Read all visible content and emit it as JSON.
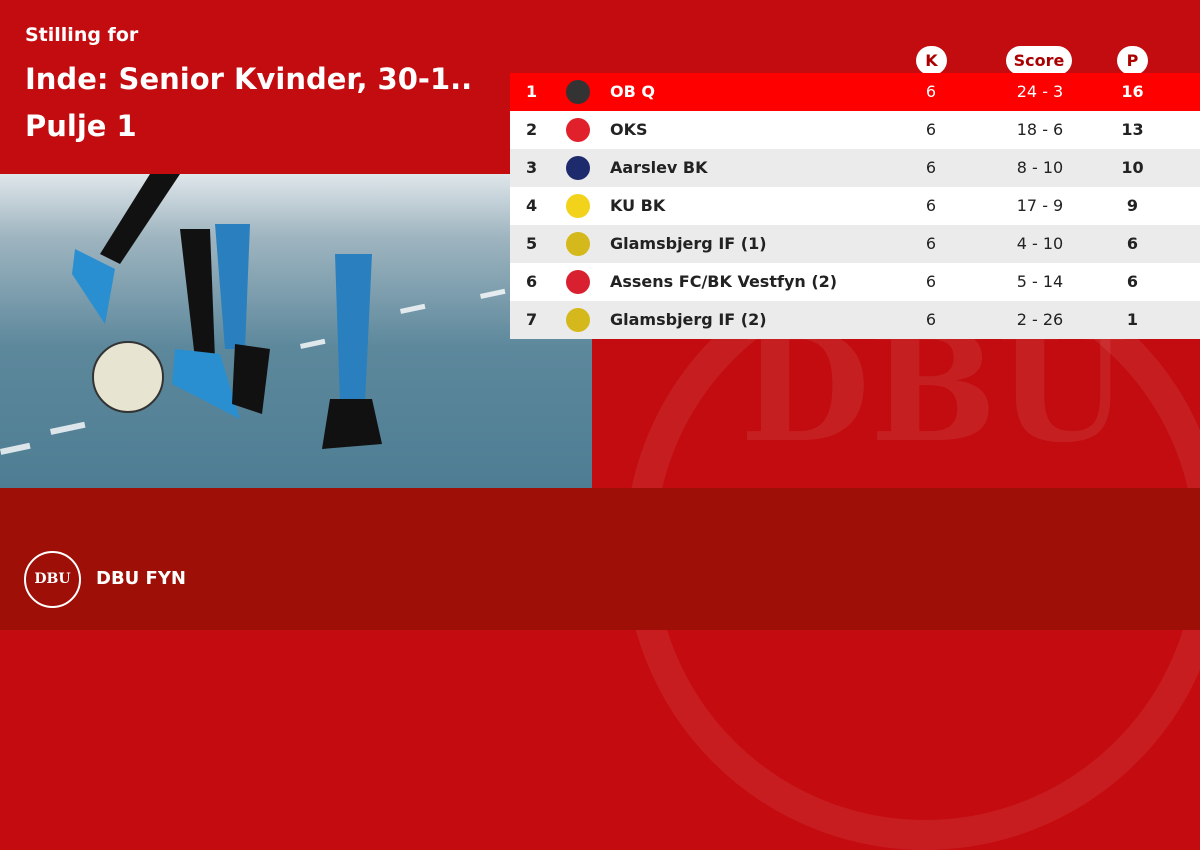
{
  "header": {
    "subtitle": "Stilling for",
    "title_line1": "Inde: Senior Kvinder, 30-1..",
    "title_line2": "Pulje 1"
  },
  "table": {
    "columns": {
      "k": "K",
      "score": "Score",
      "p": "P"
    },
    "rows": [
      {
        "pos": "1",
        "team": "OB Q",
        "k": "6",
        "score": "24 - 3",
        "p": "16",
        "logo_color": "#333333",
        "highlight": true
      },
      {
        "pos": "2",
        "team": "OKS",
        "k": "6",
        "score": "18 - 6",
        "p": "13",
        "logo_color": "#e0202a"
      },
      {
        "pos": "3",
        "team": "Aarslev BK",
        "k": "6",
        "score": "8 - 10",
        "p": "10",
        "logo_color": "#1d2a6b"
      },
      {
        "pos": "4",
        "team": "KU BK",
        "k": "6",
        "score": "17 - 9",
        "p": "9",
        "logo_color": "#f2d21a"
      },
      {
        "pos": "5",
        "team": "Glamsbjerg IF (1)",
        "k": "6",
        "score": "4 - 10",
        "p": "6",
        "logo_color": "#d4b81c"
      },
      {
        "pos": "6",
        "team": "Assens FC/BK Vestfyn (2)",
        "k": "6",
        "score": "5 - 14",
        "p": "6",
        "logo_color": "#d92030"
      },
      {
        "pos": "7",
        "team": "Glamsbjerg IF (2)",
        "k": "6",
        "score": "2 - 26",
        "p": "1",
        "logo_color": "#d4b81c"
      }
    ]
  },
  "footer": {
    "org": "DBU FYN",
    "badge_text": "DBU"
  },
  "colors": {
    "brand": "#c20c10",
    "highlight": "#ff0000",
    "footer": "#9e1007"
  }
}
